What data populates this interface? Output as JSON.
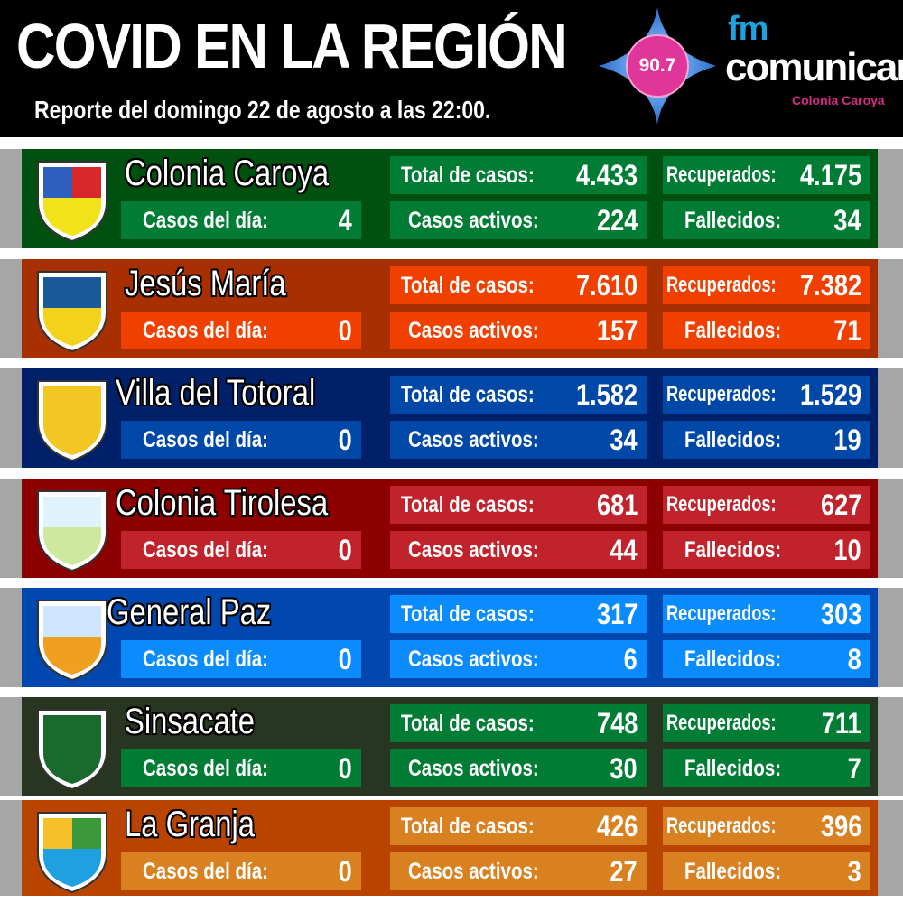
{
  "header": {
    "title": "COVID EN LA REGIÓN",
    "subtitle": "Reporte del domingo 22 de agosto a las 22:00."
  },
  "logo": {
    "frequency": "90.7",
    "fm": "fm",
    "brand": "comunicar",
    "location": "Colonia Caroya"
  },
  "labels": {
    "casos_dia": "Casos del día:",
    "total": "Total de casos:",
    "activos": "Casos activos:",
    "recuperados": "Recuperados:",
    "fallecidos": "Fallecidos:"
  },
  "towns": [
    {
      "name": "Colonia Caroya",
      "crest_icon": "colonia-caroya-crest-icon",
      "casos_dia": "4",
      "total": "4.433",
      "activos": "224",
      "recuperados": "4.175",
      "fallecidos": "34",
      "colors": {
        "panel": "#00500f",
        "box": "#007c35"
      }
    },
    {
      "name": "Jesús María",
      "crest_icon": "jesus-maria-crest-icon",
      "casos_dia": "0",
      "total": "7.610",
      "activos": "157",
      "recuperados": "7.382",
      "fallecidos": "71",
      "colors": {
        "panel": "#a83000",
        "box": "#f04000"
      }
    },
    {
      "name": "Villa del Totoral",
      "crest_icon": "villa-del-totoral-crest-icon",
      "casos_dia": "0",
      "total": "1.582",
      "activos": "34",
      "recuperados": "1.529",
      "fallecidos": "19",
      "colors": {
        "panel": "#00206a",
        "box": "#0048a8"
      }
    },
    {
      "name": "Colonia Tirolesa",
      "crest_icon": "colonia-tirolesa-crest-icon",
      "casos_dia": "0",
      "total": "681",
      "activos": "44",
      "recuperados": "627",
      "fallecidos": "10",
      "colors": {
        "panel": "#8c0000",
        "box": "#c0232c"
      }
    },
    {
      "name": "General Paz",
      "crest_icon": "general-paz-crest-icon",
      "casos_dia": "0",
      "total": "317",
      "activos": "6",
      "recuperados": "303",
      "fallecidos": "8",
      "colors": {
        "panel": "#0048b0",
        "box": "#0a8cff"
      }
    },
    {
      "name": "Sinsacate",
      "crest_icon": "sinsacate-crest-icon",
      "casos_dia": "0",
      "total": "748",
      "activos": "30",
      "recuperados": "711",
      "fallecidos": "7",
      "colors": {
        "panel": "#283520",
        "box": "#007c35"
      }
    },
    {
      "name": "La Granja",
      "crest_icon": "la-granja-crest-icon",
      "casos_dia": "0",
      "total": "426",
      "activos": "27",
      "recuperados": "396",
      "fallecidos": "3",
      "colors": {
        "panel": "#b84400",
        "box": "#d98020"
      }
    }
  ]
}
